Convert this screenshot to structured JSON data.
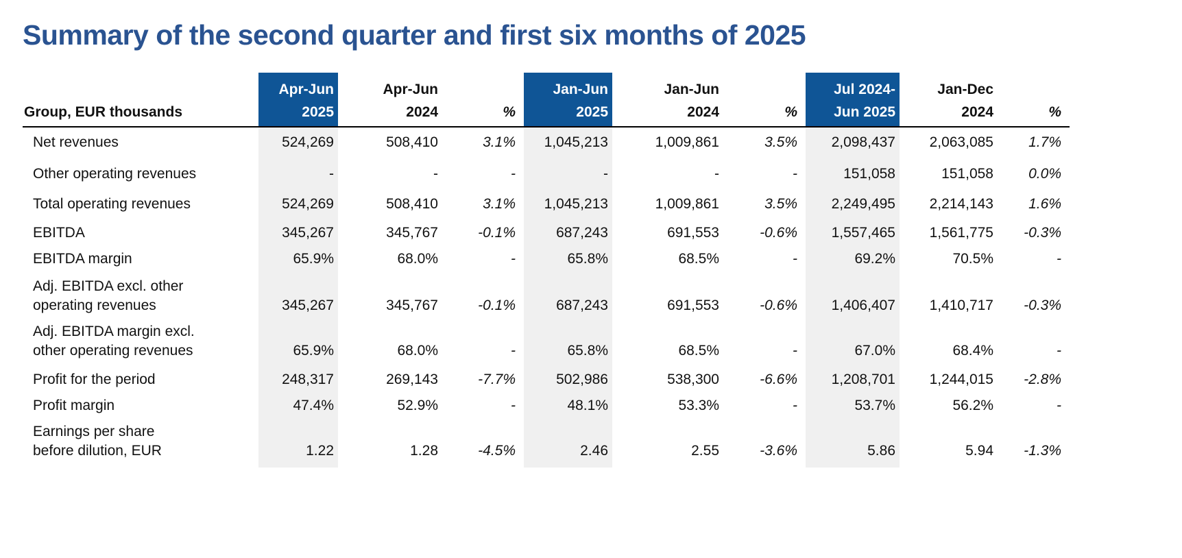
{
  "title": "Summary of the second quarter and first six months of 2025",
  "table": {
    "corner_label": "Group, EUR thousands",
    "headers": [
      {
        "line1": "Apr-Jun",
        "line2": "2025",
        "highlight": true
      },
      {
        "line1": "Apr-Jun",
        "line2": "2024",
        "highlight": false
      },
      {
        "line1": "",
        "line2": "%",
        "highlight": false
      },
      {
        "line1": "Jan-Jun",
        "line2": "2025",
        "highlight": true
      },
      {
        "line1": "Jan-Jun",
        "line2": "2024",
        "highlight": false
      },
      {
        "line1": "",
        "line2": "%",
        "highlight": false
      },
      {
        "line1": "Jul 2024-",
        "line2": "Jun 2025",
        "highlight": true
      },
      {
        "line1": "Jan-Dec",
        "line2": "2024",
        "highlight": false
      },
      {
        "line1": "",
        "line2": "%",
        "highlight": false
      }
    ],
    "rows": [
      {
        "label": [
          "Net revenues"
        ],
        "values": [
          "524,269",
          "508,410",
          "3.1%",
          "1,045,213",
          "1,009,861",
          "3.5%",
          "2,098,437",
          "2,063,085",
          "1.7%"
        ]
      },
      {
        "label": [
          "Other operating revenues"
        ],
        "values": [
          "-",
          "-",
          "-",
          "-",
          "-",
          "-",
          "151,058",
          "151,058",
          "0.0%"
        ]
      },
      {
        "label": [
          "Total operating revenues"
        ],
        "values": [
          "524,269",
          "508,410",
          "3.1%",
          "1,045,213",
          "1,009,861",
          "3.5%",
          "2,249,495",
          "2,214,143",
          "1.6%"
        ]
      },
      {
        "label": [
          "EBITDA"
        ],
        "values": [
          "345,267",
          "345,767",
          "-0.1%",
          "687,243",
          "691,553",
          "-0.6%",
          "1,557,465",
          "1,561,775",
          "-0.3%"
        ]
      },
      {
        "label": [
          "EBITDA margin"
        ],
        "values": [
          "65.9%",
          "68.0%",
          "-",
          "65.8%",
          "68.5%",
          "-",
          "69.2%",
          "70.5%",
          "-"
        ]
      },
      {
        "label": [
          "Adj. EBITDA excl. other",
          "operating revenues"
        ],
        "values": [
          "345,267",
          "345,767",
          "-0.1%",
          "687,243",
          "691,553",
          "-0.6%",
          "1,406,407",
          "1,410,717",
          "-0.3%"
        ]
      },
      {
        "label": [
          "Adj. EBITDA margin excl.",
          "other operating revenues"
        ],
        "values": [
          "65.9%",
          "68.0%",
          "-",
          "65.8%",
          "68.5%",
          "-",
          "67.0%",
          "68.4%",
          "-"
        ]
      },
      {
        "label": [
          "Profit for the period"
        ],
        "values": [
          "248,317",
          "269,143",
          "-7.7%",
          "502,986",
          "538,300",
          "-6.6%",
          "1,208,701",
          "1,244,015",
          "-2.8%"
        ]
      },
      {
        "label": [
          "Profit margin"
        ],
        "values": [
          "47.4%",
          "52.9%",
          "-",
          "48.1%",
          "53.3%",
          "-",
          "53.7%",
          "56.2%",
          "-"
        ]
      },
      {
        "label": [
          "Earnings per share",
          "before dilution, EUR"
        ],
        "values": [
          "1.22",
          "1.28",
          "-4.5%",
          "2.46",
          "2.55",
          "-3.6%",
          "5.86",
          "5.94",
          "-1.3%"
        ]
      }
    ]
  },
  "colors": {
    "title": "#2a5391",
    "header_highlight": "#0f5596",
    "column_shade": "#f0f0f0"
  }
}
